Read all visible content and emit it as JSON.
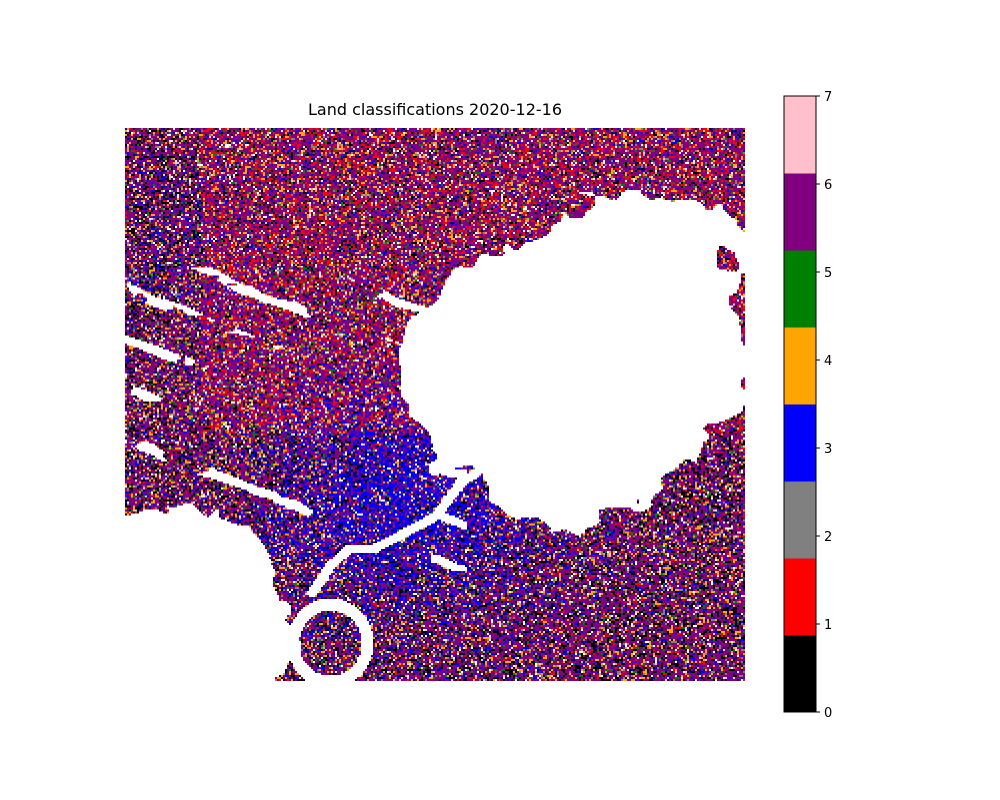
{
  "chart_data": {
    "type": "heatmap",
    "title": "Land classifications 2020-12-16",
    "xlabel": "",
    "ylabel": "",
    "axes_visible": false,
    "colorbar": {
      "position": "right",
      "range": [
        0,
        7
      ],
      "ticks": [
        "0",
        "1",
        "2",
        "3",
        "4",
        "5",
        "6",
        "7"
      ],
      "classes": [
        {
          "value": 0,
          "color": "#000000"
        },
        {
          "value": 1,
          "color": "#ff0000"
        },
        {
          "value": 2,
          "color": "#808080"
        },
        {
          "value": 3,
          "color": "#0000ff"
        },
        {
          "value": 4,
          "color": "#ffa500"
        },
        {
          "value": 5,
          "color": "#008000"
        },
        {
          "value": 6,
          "color": "#800080"
        },
        {
          "value": 7,
          "color": "#ffc0cb"
        }
      ]
    },
    "no_data_color": "#ffffff",
    "dominant_classes": [
      6,
      3,
      0,
      1
    ],
    "regions": {
      "no_data": [
        "large area upper-right center",
        "lower-left area",
        "winding river channel"
      ],
      "blue_dense": [
        "center band along river"
      ],
      "purple_mixed": [
        "upper-left",
        "right side",
        "bottom"
      ]
    }
  }
}
